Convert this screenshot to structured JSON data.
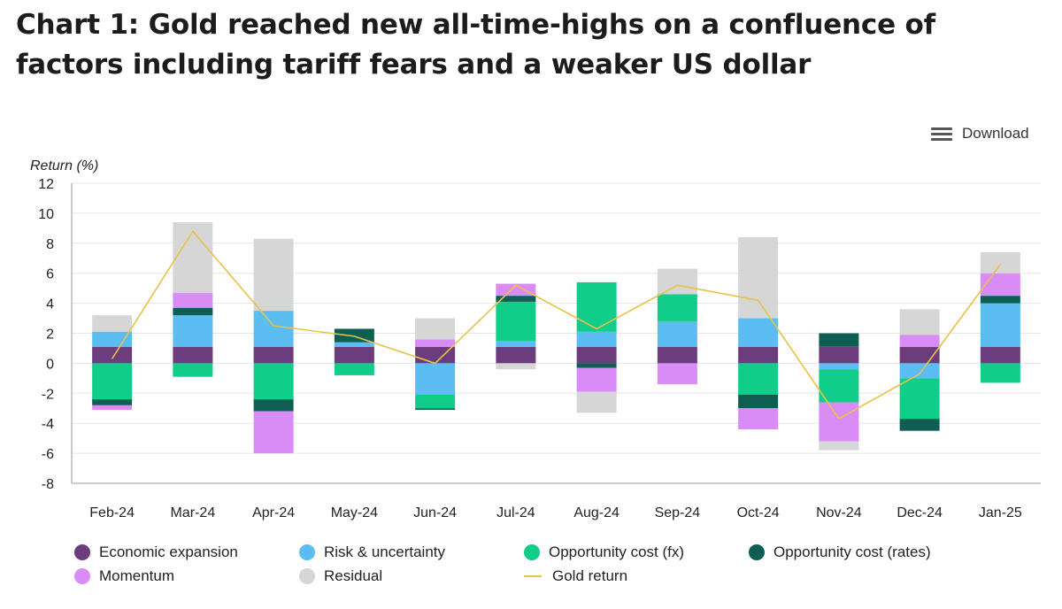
{
  "title": "Chart 1: Gold reached new all-time-highs on a confluence of factors including tariff fears and a weaker US dollar",
  "download_label": "Download",
  "icons": {
    "download_menu": "hamburger-menu-icon"
  },
  "chart_data": {
    "type": "bar",
    "stacked": true,
    "ylabel": "Return (%)",
    "ylim": [
      -8,
      12
    ],
    "yticks": [
      -8,
      -6,
      -4,
      -2,
      0,
      2,
      4,
      6,
      8,
      10,
      12
    ],
    "categories": [
      "Feb-24",
      "Mar-24",
      "Apr-24",
      "May-24",
      "Jun-24",
      "Jul-24",
      "Aug-24",
      "Sep-24",
      "Oct-24",
      "Nov-24",
      "Dec-24",
      "Jan-25"
    ],
    "legend_position": "bottom",
    "series": [
      {
        "name": "Economic expansion",
        "color": "#6b3d7d",
        "values": [
          1.1,
          1.1,
          1.1,
          1.1,
          1.1,
          1.1,
          1.1,
          1.1,
          1.1,
          1.1,
          1.1,
          1.1
        ]
      },
      {
        "name": "Risk & uncertainty",
        "color": "#5bbdf2",
        "values": [
          1.0,
          2.1,
          2.4,
          0.3,
          -2.1,
          0.4,
          1.0,
          1.7,
          1.9,
          -0.4,
          -1.0,
          2.9
        ]
      },
      {
        "name": "Opportunity cost (fx)",
        "color": "#10cd8a",
        "values": [
          -2.4,
          -0.9,
          -2.4,
          -0.8,
          -0.9,
          2.6,
          3.3,
          1.8,
          -2.1,
          -2.2,
          -2.7,
          -1.3
        ]
      },
      {
        "name": "Opportunity cost (rates)",
        "color": "#0e5e52",
        "values": [
          -0.4,
          0.5,
          -0.8,
          0.9,
          -0.1,
          0.4,
          -0.3,
          0.0,
          -0.9,
          0.9,
          -0.8,
          0.5
        ]
      },
      {
        "name": "Momentum",
        "color": "#d98cf5",
        "values": [
          -0.3,
          1.0,
          -2.8,
          0.0,
          0.5,
          0.8,
          -1.6,
          -1.4,
          -1.4,
          -2.6,
          0.8,
          1.5
        ]
      },
      {
        "name": "Residual",
        "color": "#d6d6d6",
        "values": [
          1.1,
          4.7,
          4.8,
          0.0,
          1.4,
          -0.4,
          -1.4,
          1.7,
          5.4,
          -0.6,
          1.7,
          1.4
        ]
      }
    ],
    "line": {
      "name": "Gold return",
      "color": "#e8c24a",
      "values": [
        0.3,
        8.8,
        2.5,
        1.8,
        0.0,
        5.2,
        2.3,
        5.2,
        4.2,
        -3.7,
        -0.7,
        6.6
      ]
    }
  }
}
